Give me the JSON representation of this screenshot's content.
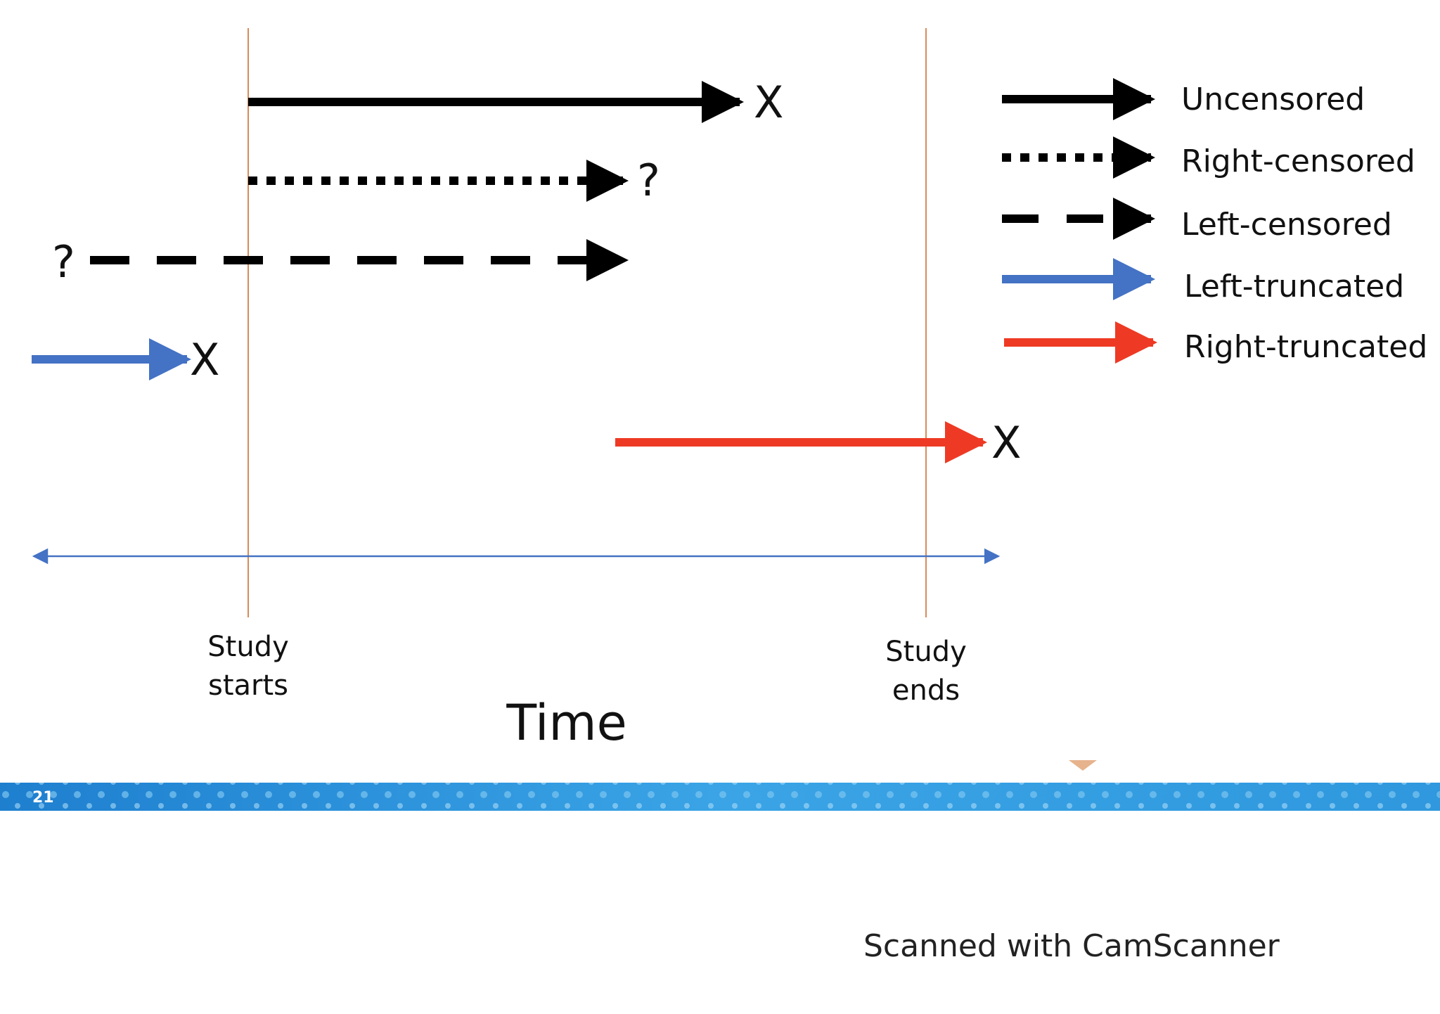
{
  "colors": {
    "black": "#000000",
    "blue": "#4472c4",
    "red": "#ee3a24",
    "boundary": "#d98a5a",
    "axis": "#4472c4",
    "band": "#2a8fd6"
  },
  "markers": {
    "event": "X",
    "unknown": "?"
  },
  "legend": [
    {
      "label": "Uncensored",
      "style": "solid",
      "color": "#000000"
    },
    {
      "label": "Right-censored",
      "style": "dotted",
      "color": "#000000"
    },
    {
      "label": "Left-censored",
      "style": "dashed",
      "color": "#000000"
    },
    {
      "label": "Left-truncated",
      "style": "solid",
      "color": "#4472c4"
    },
    {
      "label": "Right-truncated",
      "style": "solid",
      "color": "#ee3a24"
    }
  ],
  "axis": {
    "start_label_line1": "Study",
    "start_label_line2": "starts",
    "end_label_line1": "Study",
    "end_label_line2": "ends",
    "time_label": "Time"
  },
  "footer": {
    "slide_number": "21",
    "scanner_text": "Scanned with CamScanner"
  }
}
